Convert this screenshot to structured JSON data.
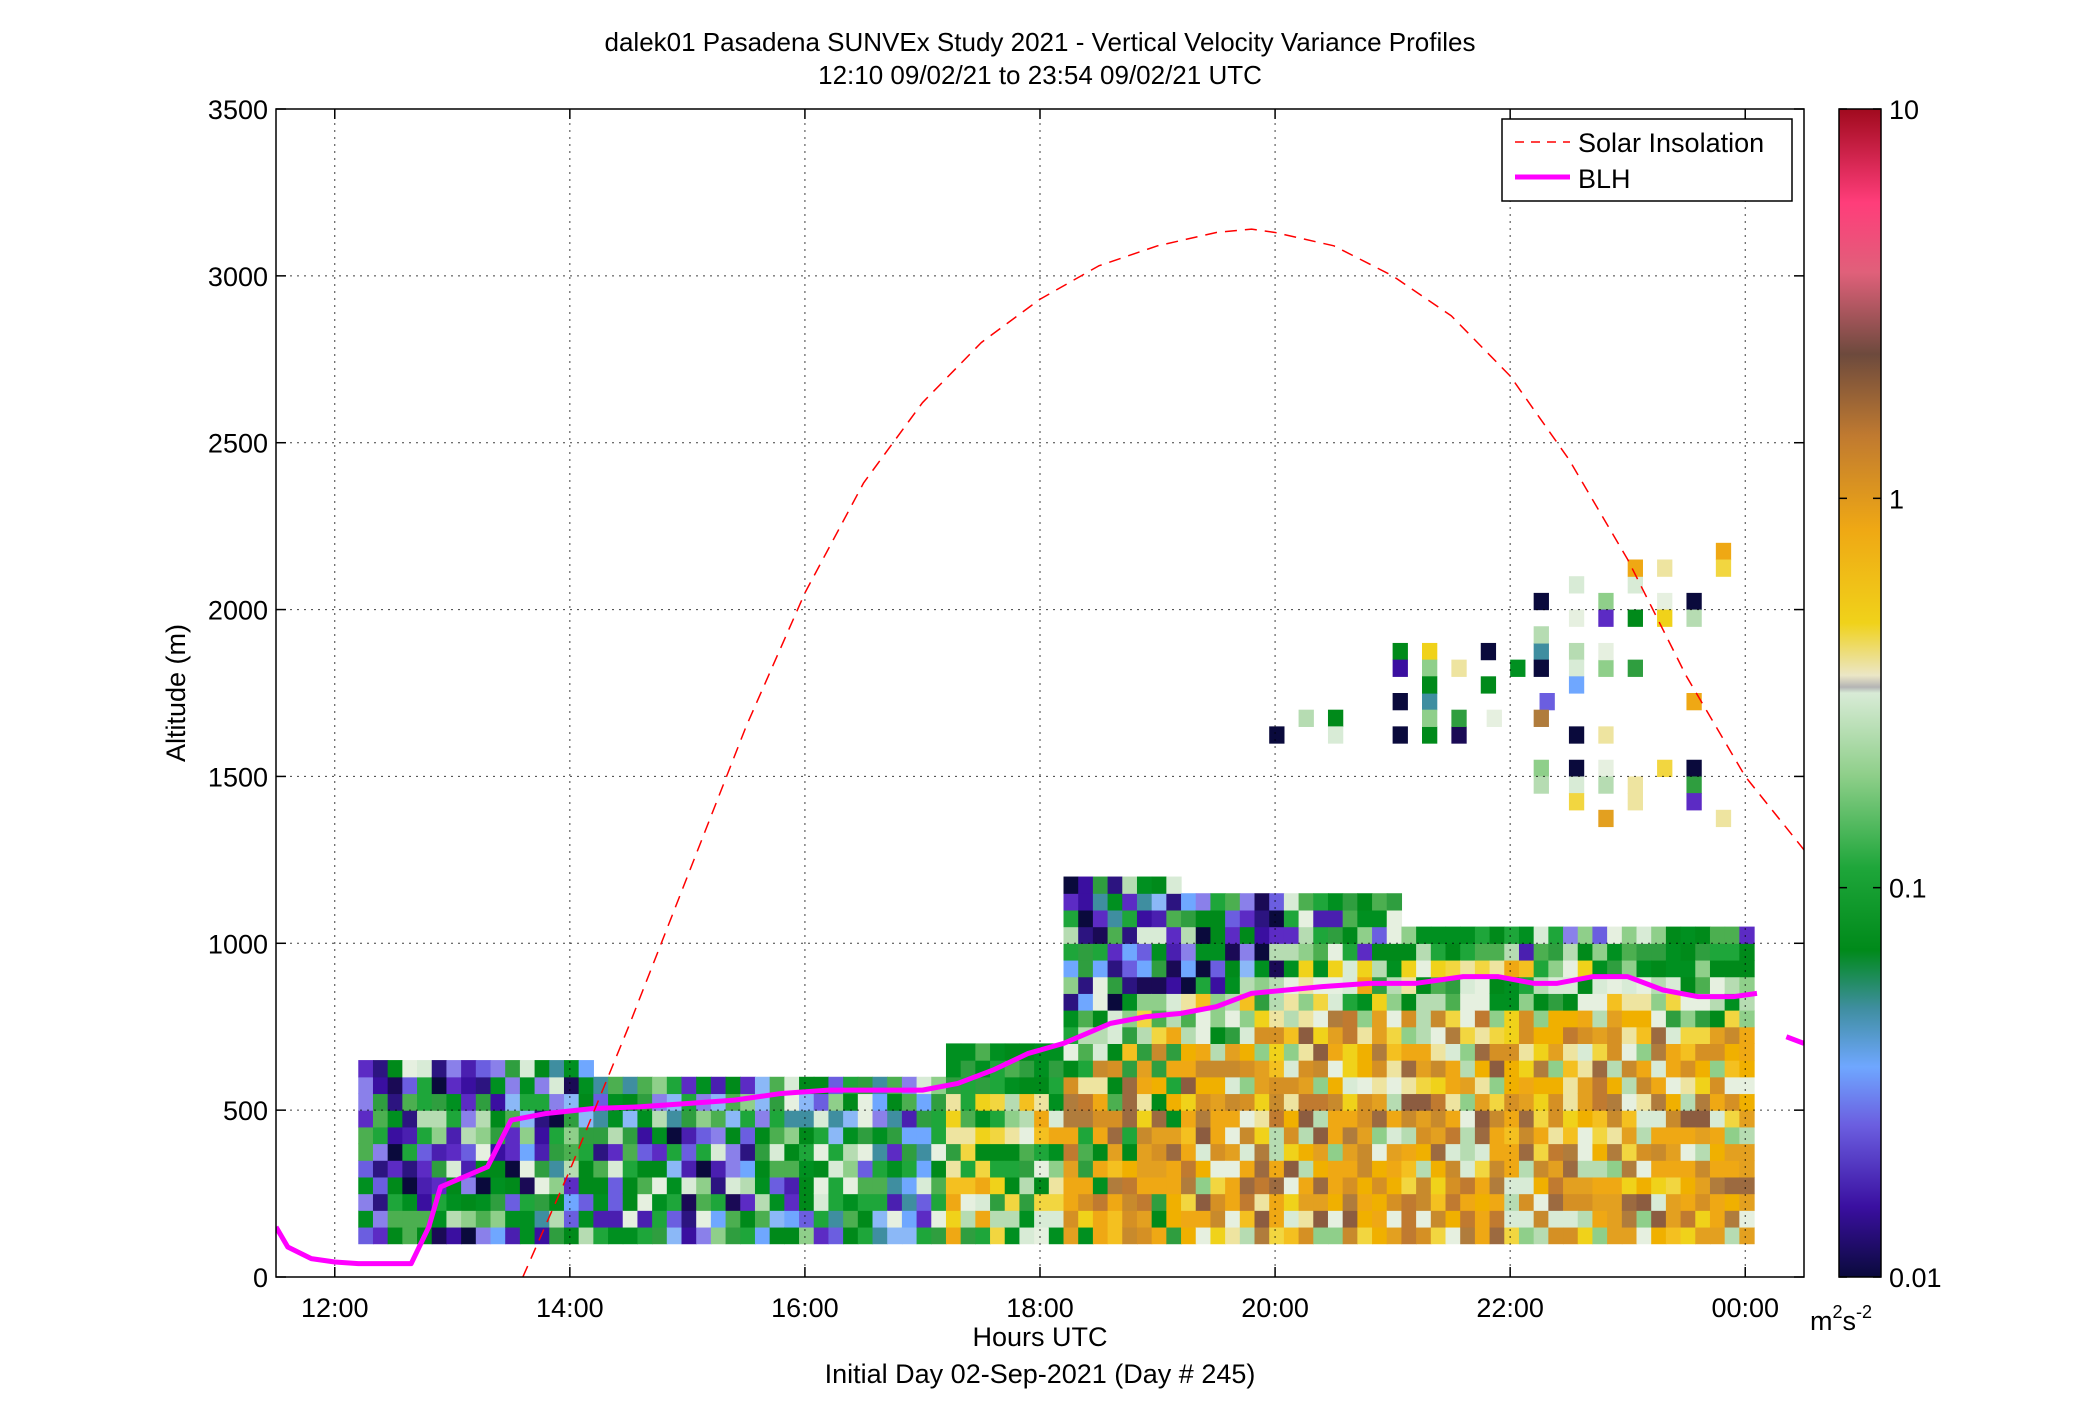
{
  "chart_data": {
    "type": "heatmap",
    "title": "dalek01 Pasadena SUNVEx Study 2021 - Vertical Velocity Variance Profiles",
    "subtitle": "12:10 09/02/21 to 23:54 09/02/21  UTC",
    "xlabel": "Hours UTC",
    "xlabel2": "Initial Day 02-Sep-2021 (Day # 245)",
    "ylabel": "Altitude (m)",
    "xlim": [
      11.5,
      24.5
    ],
    "ylim": [
      0,
      3500
    ],
    "grid": true,
    "x_ticks": [
      12,
      14,
      16,
      18,
      20,
      22,
      24
    ],
    "x_tick_labels": [
      "12:00",
      "14:00",
      "16:00",
      "18:00",
      "20:00",
      "22:00",
      "00:00"
    ],
    "y_ticks": [
      0,
      500,
      1000,
      1500,
      2000,
      2500,
      3000,
      3500
    ],
    "y_tick_labels": [
      "0",
      "500",
      "1000",
      "1500",
      "2000",
      "2500",
      "3000",
      "3500"
    ],
    "legend": {
      "position": "top-right",
      "entries": [
        {
          "label": "Solar Insolation",
          "color": "#ff0000",
          "style": "dashed"
        },
        {
          "label": "BLH",
          "color": "#ff00ff",
          "style": "solid"
        }
      ]
    },
    "colorbar": {
      "scale": "log",
      "range": [
        0.01,
        10
      ],
      "ticks": [
        0.01,
        0.1,
        1,
        10
      ],
      "tick_labels": [
        "0.01",
        "0.1",
        "1",
        "10"
      ],
      "unit_base": "m",
      "unit_sup1": "2",
      "unit_mid": "s",
      "unit_sup2": "-2"
    },
    "heatmap_grid": {
      "time_start": 12.2,
      "time_step": 0.25,
      "alt_start": 100,
      "alt_step": 50,
      "levels_rows_low_to_high": [
        "ttssssssssss.ssssssssssssssssssssssssssssssssss",
        "ssssssssssssssssssssssssssssssssssssssssssssss",
        "ssssssssssssssssssssssssssssssssssssssssssssss"
      ]
    },
    "series": [
      {
        "name": "BLH",
        "color": "#ff00ff",
        "x": [
          11.5,
          11.6,
          11.8,
          12.0,
          12.2,
          12.4,
          12.6,
          12.65,
          12.8,
          12.9,
          13.1,
          13.3,
          13.5,
          13.8,
          14.2,
          14.6,
          15.0,
          15.4,
          15.8,
          16.2,
          16.6,
          17.0,
          17.3,
          17.6,
          17.9,
          18.2,
          18.6,
          18.9,
          19.2,
          19.5,
          19.8,
          20.1,
          20.4,
          20.8,
          21.2,
          21.6,
          21.9,
          22.2,
          22.4,
          22.7,
          23.0,
          23.3,
          23.6,
          23.9,
          24.1
        ],
        "y": [
          150,
          90,
          55,
          45,
          40,
          40,
          40,
          40,
          150,
          270,
          300,
          330,
          470,
          490,
          505,
          510,
          520,
          530,
          550,
          560,
          560,
          560,
          580,
          620,
          670,
          700,
          760,
          780,
          790,
          810,
          850,
          860,
          870,
          880,
          880,
          900,
          900,
          880,
          880,
          900,
          900,
          860,
          840,
          840,
          850
        ]
      },
      {
        "name": "BLH",
        "color": "#ff00ff",
        "x": [
          24.35,
          24.5
        ],
        "y": [
          720,
          700
        ]
      },
      {
        "name": "Solar Insolation",
        "color": "#ff0000",
        "style": "dashed",
        "x": [
          13.6,
          14.0,
          14.5,
          15.0,
          15.5,
          16.0,
          16.5,
          17.0,
          17.5,
          18.0,
          18.5,
          19.0,
          19.5,
          19.8,
          20.0,
          20.5,
          21.0,
          21.5,
          22.0,
          22.5,
          23.0,
          23.5,
          24.0,
          24.5
        ],
        "y": [
          0,
          320,
          750,
          1200,
          1650,
          2050,
          2380,
          2620,
          2800,
          2930,
          3030,
          3090,
          3130,
          3140,
          3130,
          3090,
          3000,
          2880,
          2700,
          2450,
          2150,
          1800,
          1500,
          1280
        ]
      }
    ]
  }
}
